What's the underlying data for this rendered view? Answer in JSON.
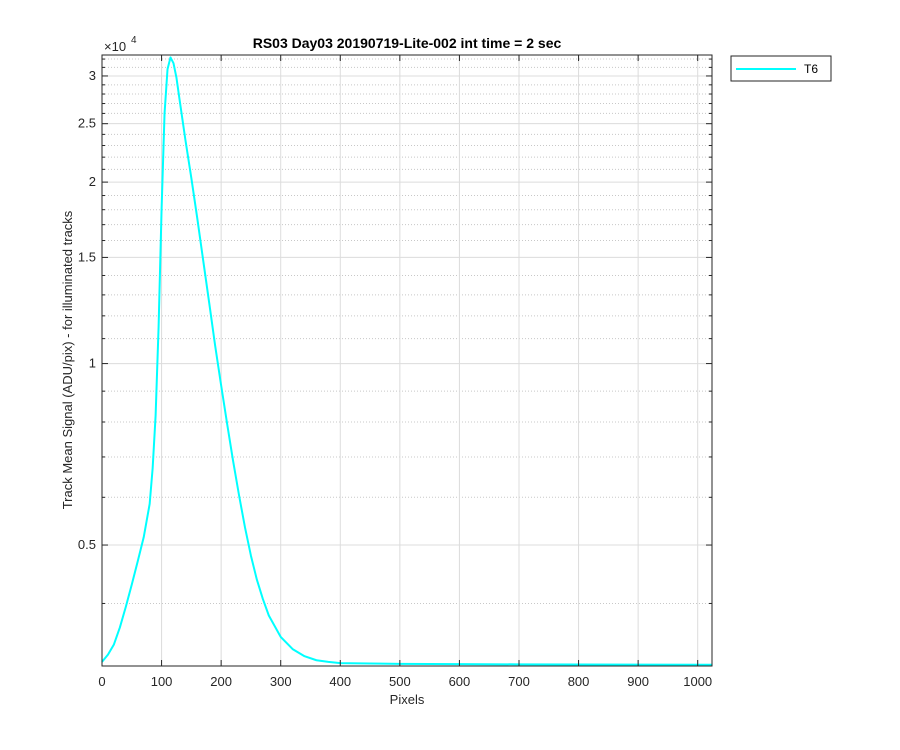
{
  "chart_data": {
    "type": "line",
    "title": "RS03 Day03 20190719-Lite-002 int time = 2 sec",
    "xlabel": "Pixels",
    "ylabel": "Track Mean Signal (ADU/pix) - for illuminated tracks",
    "xlim": [
      0,
      1024
    ],
    "ylim": [
      3150,
      32500
    ],
    "yscale": "log",
    "y_exponent_label": "×10^4",
    "y_exponent_base": "×10",
    "y_exponent_power": "4",
    "grid": true,
    "minor_grid": true,
    "legend_position": "outside-top-right",
    "x_ticks": [
      0,
      100,
      200,
      300,
      400,
      500,
      600,
      700,
      800,
      900,
      1000
    ],
    "x_tick_labels": [
      "0",
      "100",
      "200",
      "300",
      "400",
      "500",
      "600",
      "700",
      "800",
      "900",
      "1000"
    ],
    "y_ticks": [
      5000,
      10000,
      15000,
      20000,
      25000,
      30000
    ],
    "y_tick_labels": [
      "0.5",
      "1",
      "1.5",
      "2",
      "2.5",
      "3"
    ],
    "y_minor_ticks": [
      4000,
      6000,
      7000,
      8000,
      9000,
      11000,
      12000,
      13000,
      14000,
      16000,
      17000,
      18000,
      19000,
      21000,
      22000,
      23000,
      24000,
      26000,
      27000,
      28000,
      29000,
      31000,
      32000
    ],
    "series": [
      {
        "name": "T6",
        "color": "#00FFFF",
        "x": [
          0,
          10,
          20,
          30,
          40,
          50,
          60,
          70,
          80,
          85,
          90,
          95,
          100,
          105,
          110,
          115,
          120,
          125,
          130,
          140,
          150,
          160,
          170,
          180,
          190,
          200,
          210,
          220,
          230,
          240,
          250,
          260,
          270,
          280,
          300,
          320,
          340,
          360,
          380,
          400,
          450,
          500,
          600,
          700,
          800,
          900,
          1024
        ],
        "y": [
          3200,
          3290,
          3420,
          3650,
          3950,
          4300,
          4700,
          5150,
          5850,
          6700,
          8200,
          11500,
          18000,
          26000,
          30800,
          32200,
          31500,
          29800,
          27500,
          23500,
          20300,
          17400,
          14800,
          12600,
          10700,
          9200,
          7950,
          6900,
          6050,
          5350,
          4800,
          4380,
          4070,
          3820,
          3520,
          3360,
          3270,
          3220,
          3200,
          3185,
          3180,
          3175,
          3172,
          3170,
          3168,
          3166,
          3165
        ]
      }
    ]
  }
}
